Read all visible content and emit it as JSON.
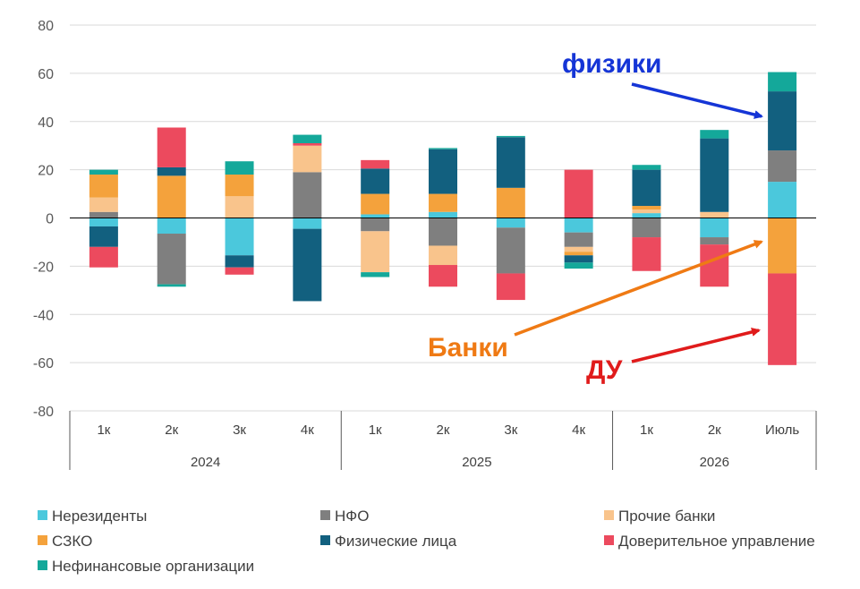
{
  "chart_data": {
    "type": "bar",
    "stacked": true,
    "ylim": [
      -80,
      80
    ],
    "yticks": [
      80,
      60,
      40,
      20,
      0,
      -20,
      -40,
      -60,
      -80
    ],
    "grid": true,
    "legend_position": "bottom",
    "categories": [
      "1к",
      "2к",
      "3к",
      "4к",
      "1к",
      "2к",
      "3к",
      "4к",
      "1к",
      "2к",
      "Июль"
    ],
    "groups": [
      {
        "label": "2024",
        "start": 0,
        "end": 3
      },
      {
        "label": "2025",
        "start": 4,
        "end": 7
      },
      {
        "label": "2026",
        "start": 8,
        "end": 10
      }
    ],
    "series": [
      {
        "name": "Нерезиденты",
        "color": "#4bc8dc",
        "values": [
          -3.5,
          -6.5,
          -15.5,
          -4.5,
          1.5,
          2.5,
          -4,
          -6,
          2,
          -8,
          15
        ]
      },
      {
        "name": "НФО",
        "color": "#7f7f7f",
        "values": [
          2.5,
          -21,
          0,
          19,
          -5.5,
          -11.5,
          -19,
          -6,
          -8,
          -3,
          13
        ]
      },
      {
        "name": "Прочие банки",
        "color": "#f9c48c",
        "values": [
          6,
          0,
          9,
          11,
          -17,
          -8,
          0,
          -2,
          1.5,
          2.5,
          0
        ]
      },
      {
        "name": "СЗКО",
        "color": "#f4a23c",
        "values": [
          9.5,
          17.5,
          9,
          0,
          8.5,
          7.5,
          12.5,
          -1.5,
          1.5,
          0,
          -23
        ]
      },
      {
        "name": "Физические лица",
        "color": "#12607f",
        "values": [
          -8.5,
          3.5,
          -5,
          -30,
          10.5,
          18.5,
          21,
          -3,
          15,
          30.5,
          24.5
        ]
      },
      {
        "name": "Доверительное управление",
        "color": "#ec4a5e",
        "values": [
          -8.5,
          16.5,
          -3,
          1,
          3.5,
          -9,
          -11,
          20,
          -14,
          -17.5,
          -38
        ]
      },
      {
        "name": "Нефинансовые организации",
        "color": "#14a89a",
        "values": [
          2,
          -1,
          5.5,
          3.5,
          -2,
          0.5,
          0.5,
          -2.5,
          2,
          3.5,
          8
        ]
      }
    ],
    "annotations": [
      {
        "text": "физики",
        "color": "#1535d6"
      },
      {
        "text": "Банки",
        "color": "#ef7a14"
      },
      {
        "text": "ДУ",
        "color": "#e01b1b"
      }
    ]
  }
}
